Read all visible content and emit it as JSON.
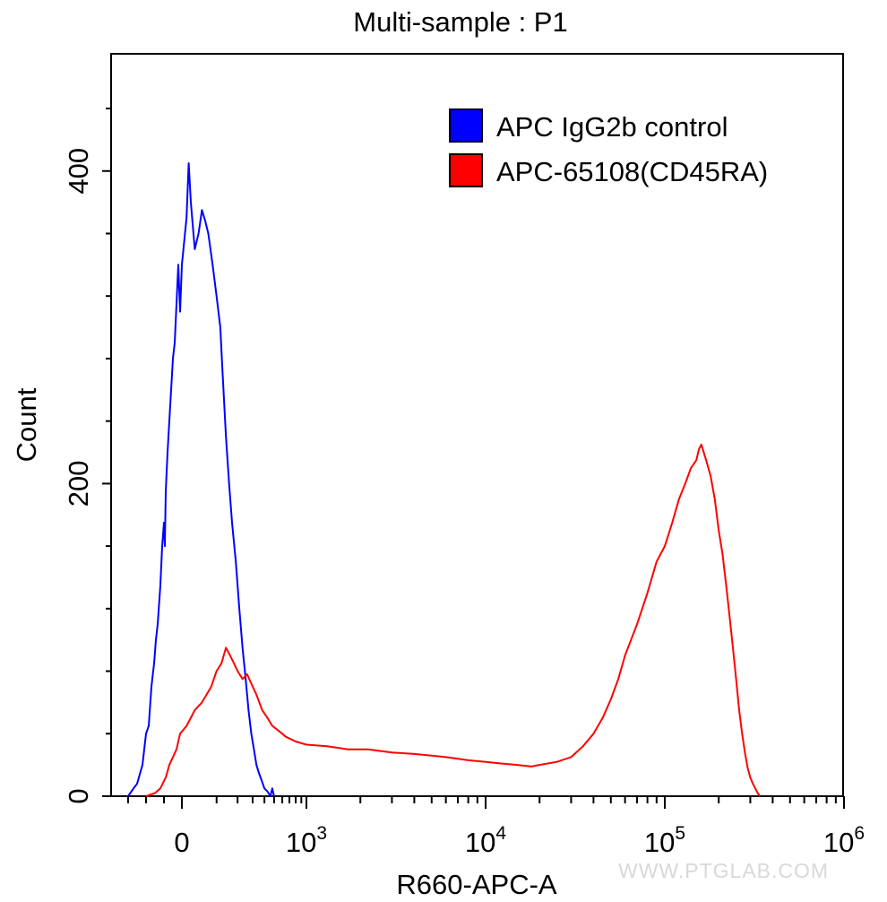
{
  "watermark": "WWW.PTGLAB.COM",
  "chart_data": {
    "type": "line",
    "title": "Multi-sample : P1",
    "xlabel": "R660-APC-A",
    "ylabel": "Count",
    "x_scale": "biexponential",
    "xlim": [
      -300,
      1000000
    ],
    "ylim": [
      0,
      475
    ],
    "x_ticks": [
      {
        "value": 0,
        "base": "0",
        "exp": ""
      },
      {
        "value": 1000,
        "base": "10",
        "exp": "3"
      },
      {
        "value": 10000,
        "base": "10",
        "exp": "4"
      },
      {
        "value": 100000,
        "base": "10",
        "exp": "5"
      },
      {
        "value": 1000000,
        "base": "10",
        "exp": "6"
      }
    ],
    "y_ticks": [
      0,
      200,
      400
    ],
    "grid": false,
    "legend_position": "top-right",
    "series": [
      {
        "name": "APC IgG2b control",
        "color": "#0000ff",
        "points": [
          [
            -300,
            0
          ],
          [
            -270,
            5
          ],
          [
            -250,
            8
          ],
          [
            -220,
            20
          ],
          [
            -200,
            40
          ],
          [
            -185,
            45
          ],
          [
            -170,
            70
          ],
          [
            -155,
            85
          ],
          [
            -145,
            100
          ],
          [
            -135,
            110
          ],
          [
            -120,
            135
          ],
          [
            -110,
            160
          ],
          [
            -100,
            175
          ],
          [
            -95,
            160
          ],
          [
            -90,
            195
          ],
          [
            -80,
            220
          ],
          [
            -70,
            240
          ],
          [
            -60,
            260
          ],
          [
            -50,
            280
          ],
          [
            -40,
            290
          ],
          [
            -30,
            315
          ],
          [
            -20,
            340
          ],
          [
            -15,
            325
          ],
          [
            -10,
            310
          ],
          [
            0,
            340
          ],
          [
            10,
            370
          ],
          [
            15,
            405
          ],
          [
            20,
            380
          ],
          [
            30,
            350
          ],
          [
            40,
            360
          ],
          [
            50,
            375
          ],
          [
            60,
            368
          ],
          [
            70,
            360
          ],
          [
            85,
            340
          ],
          [
            100,
            320
          ],
          [
            115,
            300
          ],
          [
            125,
            270
          ],
          [
            140,
            230
          ],
          [
            155,
            200
          ],
          [
            170,
            175
          ],
          [
            190,
            150
          ],
          [
            210,
            120
          ],
          [
            230,
            95
          ],
          [
            250,
            75
          ],
          [
            270,
            55
          ],
          [
            290,
            40
          ],
          [
            310,
            30
          ],
          [
            330,
            20
          ],
          [
            350,
            15
          ],
          [
            375,
            10
          ],
          [
            400,
            5
          ],
          [
            430,
            3
          ],
          [
            460,
            0
          ],
          [
            480,
            5
          ],
          [
            500,
            0
          ]
        ]
      },
      {
        "name": "APC-65108(CD45RA)",
        "color": "#ff0000",
        "points": [
          [
            -200,
            0
          ],
          [
            -150,
            2
          ],
          [
            -120,
            5
          ],
          [
            -90,
            12
          ],
          [
            -70,
            20
          ],
          [
            -50,
            25
          ],
          [
            -30,
            30
          ],
          [
            -10,
            40
          ],
          [
            10,
            45
          ],
          [
            30,
            55
          ],
          [
            50,
            60
          ],
          [
            80,
            70
          ],
          [
            100,
            80
          ],
          [
            120,
            85
          ],
          [
            140,
            95
          ],
          [
            160,
            90
          ],
          [
            180,
            85
          ],
          [
            200,
            80
          ],
          [
            230,
            75
          ],
          [
            260,
            78
          ],
          [
            290,
            72
          ],
          [
            330,
            65
          ],
          [
            380,
            55
          ],
          [
            430,
            50
          ],
          [
            480,
            45
          ],
          [
            550,
            42
          ],
          [
            650,
            38
          ],
          [
            800,
            35
          ],
          [
            1000,
            33
          ],
          [
            1300,
            32
          ],
          [
            1700,
            30
          ],
          [
            2200,
            30
          ],
          [
            3000,
            28
          ],
          [
            4000,
            27
          ],
          [
            5000,
            26
          ],
          [
            6000,
            25
          ],
          [
            7000,
            24
          ],
          [
            8000,
            23
          ],
          [
            10000,
            22
          ],
          [
            12000,
            21
          ],
          [
            15000,
            20
          ],
          [
            18000,
            19
          ],
          [
            20000,
            20
          ],
          [
            25000,
            22
          ],
          [
            30000,
            25
          ],
          [
            35000,
            32
          ],
          [
            40000,
            40
          ],
          [
            45000,
            50
          ],
          [
            50000,
            62
          ],
          [
            55000,
            75
          ],
          [
            60000,
            90
          ],
          [
            70000,
            110
          ],
          [
            80000,
            130
          ],
          [
            90000,
            150
          ],
          [
            100000,
            160
          ],
          [
            110000,
            175
          ],
          [
            120000,
            190
          ],
          [
            130000,
            200
          ],
          [
            140000,
            210
          ],
          [
            150000,
            215
          ],
          [
            155000,
            222
          ],
          [
            160000,
            225
          ],
          [
            170000,
            215
          ],
          [
            180000,
            205
          ],
          [
            190000,
            190
          ],
          [
            200000,
            170
          ],
          [
            210000,
            155
          ],
          [
            220000,
            135
          ],
          [
            230000,
            115
          ],
          [
            240000,
            95
          ],
          [
            250000,
            75
          ],
          [
            260000,
            55
          ],
          [
            270000,
            40
          ],
          [
            280000,
            28
          ],
          [
            290000,
            18
          ],
          [
            300000,
            12
          ],
          [
            310000,
            8
          ],
          [
            320000,
            5
          ],
          [
            330000,
            2
          ],
          [
            340000,
            0
          ]
        ]
      }
    ]
  }
}
